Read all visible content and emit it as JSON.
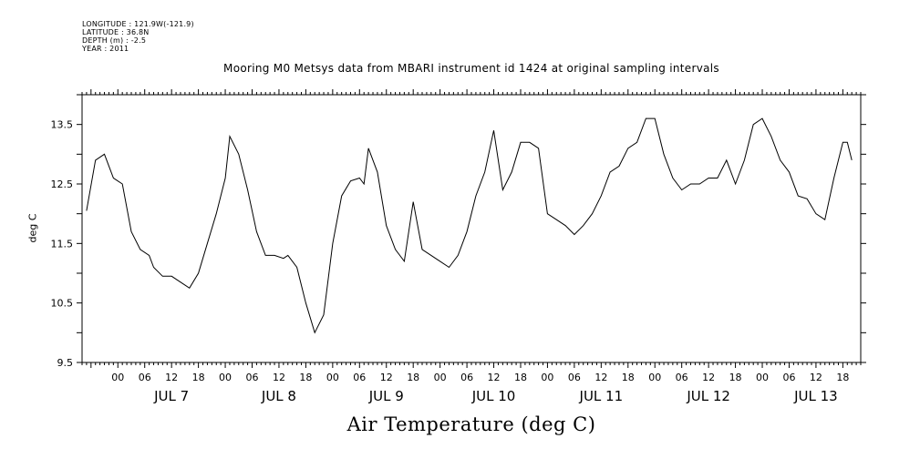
{
  "header_lines": {
    "longitude": "LONGITUDE : 121.9W(-121.9)",
    "latitude": "LATITUDE : 36.8N",
    "depth": "DEPTH (m) : -2.5",
    "year": "YEAR : 2011"
  },
  "chart_data": {
    "type": "line",
    "title": "Mooring M0 Metsys data from MBARI instrument id 1424 at original sampling intervals",
    "xlabel": "Air Temperature (deg C)",
    "ylabel": "deg C",
    "ylim": [
      9.5,
      14.0
    ],
    "yticks": [
      9.5,
      10.5,
      11.5,
      12.5,
      13.5
    ],
    "ytick_labels": [
      "9.5",
      "10.5",
      "11.5",
      "12.5",
      "13.5"
    ],
    "xlim": [
      "2011-07-06T16:00",
      "2011-07-13T22:00"
    ],
    "x_hour_ticks": [
      "2011-07-07T00:00",
      "2011-07-07T06:00",
      "2011-07-07T12:00",
      "2011-07-07T18:00",
      "2011-07-08T00:00",
      "2011-07-08T06:00",
      "2011-07-08T12:00",
      "2011-07-08T18:00",
      "2011-07-09T00:00",
      "2011-07-09T06:00",
      "2011-07-09T12:00",
      "2011-07-09T18:00",
      "2011-07-10T00:00",
      "2011-07-10T06:00",
      "2011-07-10T12:00",
      "2011-07-10T18:00",
      "2011-07-11T00:00",
      "2011-07-11T06:00",
      "2011-07-11T12:00",
      "2011-07-11T18:00",
      "2011-07-12T00:00",
      "2011-07-12T06:00",
      "2011-07-12T12:00",
      "2011-07-12T18:00",
      "2011-07-13T00:00",
      "2011-07-13T06:00",
      "2011-07-13T12:00",
      "2011-07-13T18:00"
    ],
    "x_hour_labels": [
      "00",
      "06",
      "12",
      "18",
      "00",
      "06",
      "12",
      "18",
      "00",
      "06",
      "12",
      "18",
      "00",
      "06",
      "12",
      "18",
      "00",
      "06",
      "12",
      "18",
      "00",
      "06",
      "12",
      "18",
      "00",
      "06",
      "12",
      "18"
    ],
    "x_day_ticks": [
      "2011-07-07T12:00",
      "2011-07-08T12:00",
      "2011-07-09T12:00",
      "2011-07-10T12:00",
      "2011-07-11T12:00",
      "2011-07-12T12:00",
      "2011-07-13T12:00"
    ],
    "x_day_labels": [
      "JUL  7",
      "JUL  8",
      "JUL  9",
      "JUL 10",
      "JUL 11",
      "JUL 12",
      "JUL 13"
    ],
    "grid": false,
    "series": [
      {
        "x": [
          "2011-07-06T17:00",
          "2011-07-06T19:00",
          "2011-07-06T21:00",
          "2011-07-06T23:00",
          "2011-07-07T01:00",
          "2011-07-07T03:00",
          "2011-07-07T05:00",
          "2011-07-07T07:00",
          "2011-07-07T08:00",
          "2011-07-07T10:00",
          "2011-07-07T12:00",
          "2011-07-07T14:00",
          "2011-07-07T16:00",
          "2011-07-07T18:00",
          "2011-07-07T20:00",
          "2011-07-07T22:00",
          "2011-07-08T00:00",
          "2011-07-08T01:00",
          "2011-07-08T03:00",
          "2011-07-08T05:00",
          "2011-07-08T07:00",
          "2011-07-08T09:00",
          "2011-07-08T11:00",
          "2011-07-08T13:00",
          "2011-07-08T14:00",
          "2011-07-08T16:00",
          "2011-07-08T18:00",
          "2011-07-08T20:00",
          "2011-07-08T22:00",
          "2011-07-09T00:00",
          "2011-07-09T02:00",
          "2011-07-09T04:00",
          "2011-07-09T06:00",
          "2011-07-09T07:00",
          "2011-07-09T08:00",
          "2011-07-09T10:00",
          "2011-07-09T12:00",
          "2011-07-09T14:00",
          "2011-07-09T16:00",
          "2011-07-09T18:00",
          "2011-07-09T20:00",
          "2011-07-09T22:00",
          "2011-07-10T00:00",
          "2011-07-10T02:00",
          "2011-07-10T04:00",
          "2011-07-10T06:00",
          "2011-07-10T08:00",
          "2011-07-10T10:00",
          "2011-07-10T12:00",
          "2011-07-10T14:00",
          "2011-07-10T16:00",
          "2011-07-10T18:00",
          "2011-07-10T20:00",
          "2011-07-10T22:00",
          "2011-07-11T00:00",
          "2011-07-11T02:00",
          "2011-07-11T04:00",
          "2011-07-11T06:00",
          "2011-07-11T08:00",
          "2011-07-11T10:00",
          "2011-07-11T12:00",
          "2011-07-11T14:00",
          "2011-07-11T16:00",
          "2011-07-11T18:00",
          "2011-07-11T20:00",
          "2011-07-11T22:00",
          "2011-07-12T00:00",
          "2011-07-12T02:00",
          "2011-07-12T04:00",
          "2011-07-12T06:00",
          "2011-07-12T08:00",
          "2011-07-12T10:00",
          "2011-07-12T12:00",
          "2011-07-12T14:00",
          "2011-07-12T16:00",
          "2011-07-12T18:00",
          "2011-07-12T20:00",
          "2011-07-12T22:00",
          "2011-07-13T00:00",
          "2011-07-13T02:00",
          "2011-07-13T04:00",
          "2011-07-13T06:00",
          "2011-07-13T08:00",
          "2011-07-13T10:00",
          "2011-07-13T12:00",
          "2011-07-13T14:00",
          "2011-07-13T16:00",
          "2011-07-13T18:00",
          "2011-07-13T19:00",
          "2011-07-13T20:00"
        ],
        "y": [
          12.05,
          12.9,
          13.0,
          12.6,
          12.5,
          11.7,
          11.4,
          11.3,
          11.1,
          10.95,
          10.95,
          10.85,
          10.75,
          11.0,
          11.5,
          12.0,
          12.6,
          13.3,
          13.0,
          12.4,
          11.7,
          11.3,
          11.3,
          11.25,
          11.3,
          11.1,
          10.5,
          10.0,
          10.3,
          11.5,
          12.3,
          12.55,
          12.6,
          12.5,
          13.1,
          12.7,
          11.8,
          11.4,
          11.2,
          12.2,
          11.4,
          11.3,
          11.2,
          11.1,
          11.3,
          11.7,
          12.3,
          12.7,
          13.4,
          12.4,
          12.7,
          13.2,
          13.2,
          13.1,
          12.0,
          11.9,
          11.8,
          11.65,
          11.8,
          12.0,
          12.3,
          12.7,
          12.8,
          13.1,
          13.2,
          13.6,
          13.6,
          13.0,
          12.6,
          12.4,
          12.5,
          12.5,
          12.6,
          12.6,
          12.9,
          12.5,
          12.9,
          13.5,
          13.6,
          13.3,
          12.9,
          12.7,
          12.3,
          12.25,
          12.0,
          11.9,
          12.6,
          13.2,
          13.2,
          12.9
        ]
      }
    ]
  }
}
